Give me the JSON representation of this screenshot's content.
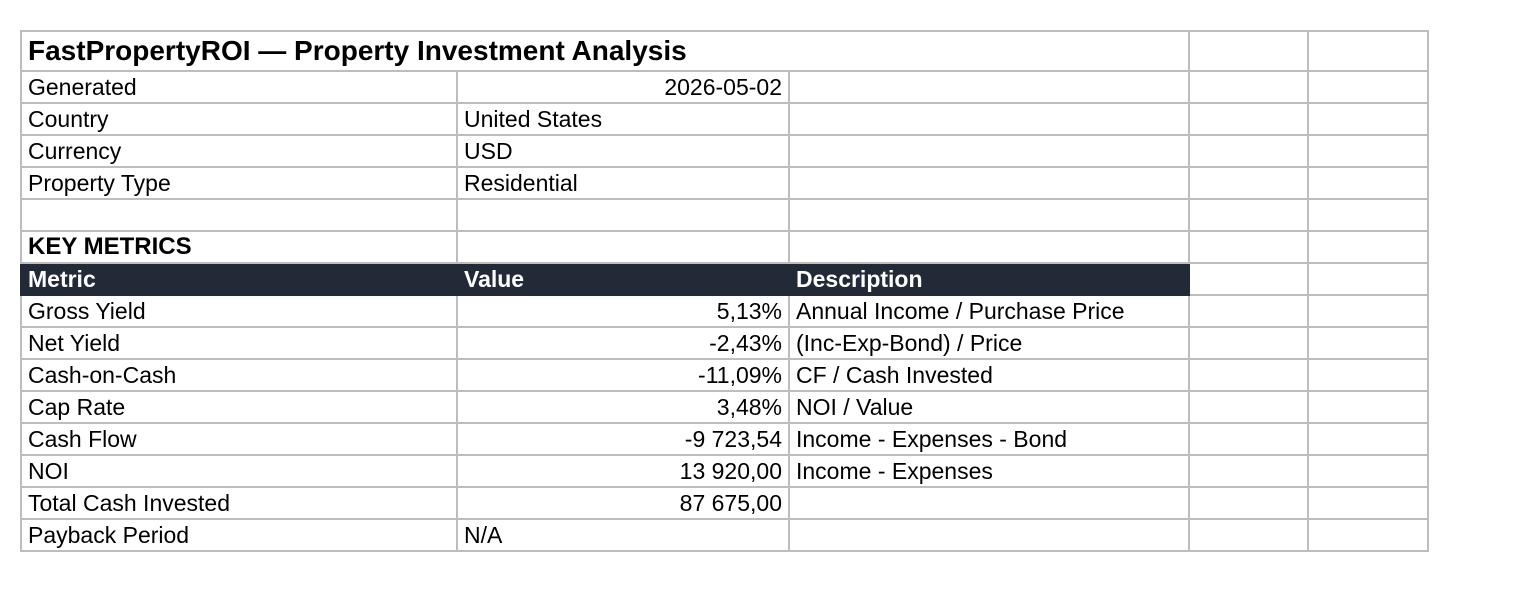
{
  "title": "FastPropertyROI — Property Investment Analysis",
  "info": [
    {
      "label": "Generated",
      "value": "2026-05-02",
      "align": "right"
    },
    {
      "label": "Country",
      "value": "United States",
      "align": "left"
    },
    {
      "label": "Currency",
      "value": "USD",
      "align": "left"
    },
    {
      "label": "Property Type",
      "value": "Residential",
      "align": "left"
    }
  ],
  "section_title": "KEY METRICS",
  "headers": {
    "metric": "Metric",
    "value": "Value",
    "description": "Description"
  },
  "metrics": [
    {
      "metric": "Gross Yield",
      "value": "5,13%",
      "description": "Annual Income / Purchase Price"
    },
    {
      "metric": "Net Yield",
      "value": "-2,43%",
      "description": "(Inc-Exp-Bond) / Price"
    },
    {
      "metric": "Cash-on-Cash",
      "value": "-11,09%",
      "description": "CF / Cash Invested"
    },
    {
      "metric": "Cap Rate",
      "value": "3,48%",
      "description": "NOI / Value"
    },
    {
      "metric": "Cash Flow",
      "value": "-9 723,54",
      "description": "Income - Expenses - Bond"
    },
    {
      "metric": "NOI",
      "value": "13 920,00",
      "description": "Income - Expenses"
    },
    {
      "metric": "Total Cash Invested",
      "value": "87 675,00",
      "description": ""
    },
    {
      "metric": "Payback Period",
      "value": "N/A",
      "description": ""
    }
  ],
  "colors": {
    "header_bg": "#222a38",
    "header_text": "#ffffff",
    "grid": "#bdbdbd"
  }
}
